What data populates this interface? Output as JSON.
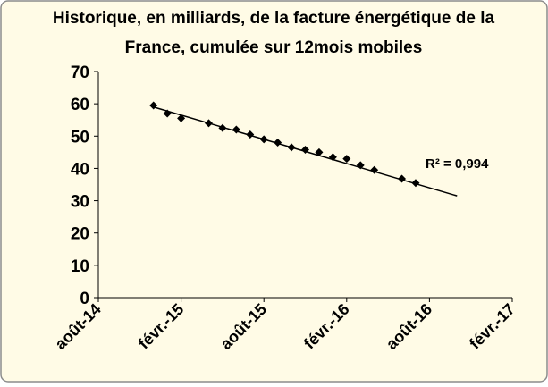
{
  "chart_data": {
    "type": "scatter",
    "title": [
      "Historique, en milliards, de la facture énergétique de la",
      "France, cumulée sur 12mois mobiles"
    ],
    "x": [
      "2014-12",
      "2015-01",
      "2015-02",
      "2015-04",
      "2015-05",
      "2015-06",
      "2015-07",
      "2015-08",
      "2015-09",
      "2015-10",
      "2015-11",
      "2015-12",
      "2016-01",
      "2016-02",
      "2016-03",
      "2016-04",
      "2016-06",
      "2016-07"
    ],
    "values": [
      59.5,
      57,
      55.5,
      54,
      52.5,
      52,
      50.5,
      49,
      48,
      46.5,
      45.8,
      45,
      43.5,
      43,
      41,
      39.5,
      36.8,
      35.5
    ],
    "color": "#000000",
    "trendline": {
      "x": [
        "2014-12",
        "2016-10"
      ],
      "values": [
        59,
        31.5
      ]
    },
    "annotation": "R² = 0,994",
    "xlim": [
      "2014-08",
      "2017-02"
    ],
    "xticks": [
      {
        "value": "2014-08",
        "label": "août-14"
      },
      {
        "value": "2015-02",
        "label": "févr.-15"
      },
      {
        "value": "2015-08",
        "label": "août-15"
      },
      {
        "value": "2016-02",
        "label": "févr.-16"
      },
      {
        "value": "2016-08",
        "label": "août-16"
      },
      {
        "value": "2017-02",
        "label": "févr.-17"
      }
    ],
    "ylim": [
      0,
      70
    ],
    "yticks": [
      0,
      10,
      20,
      30,
      40,
      50,
      60,
      70
    ]
  }
}
